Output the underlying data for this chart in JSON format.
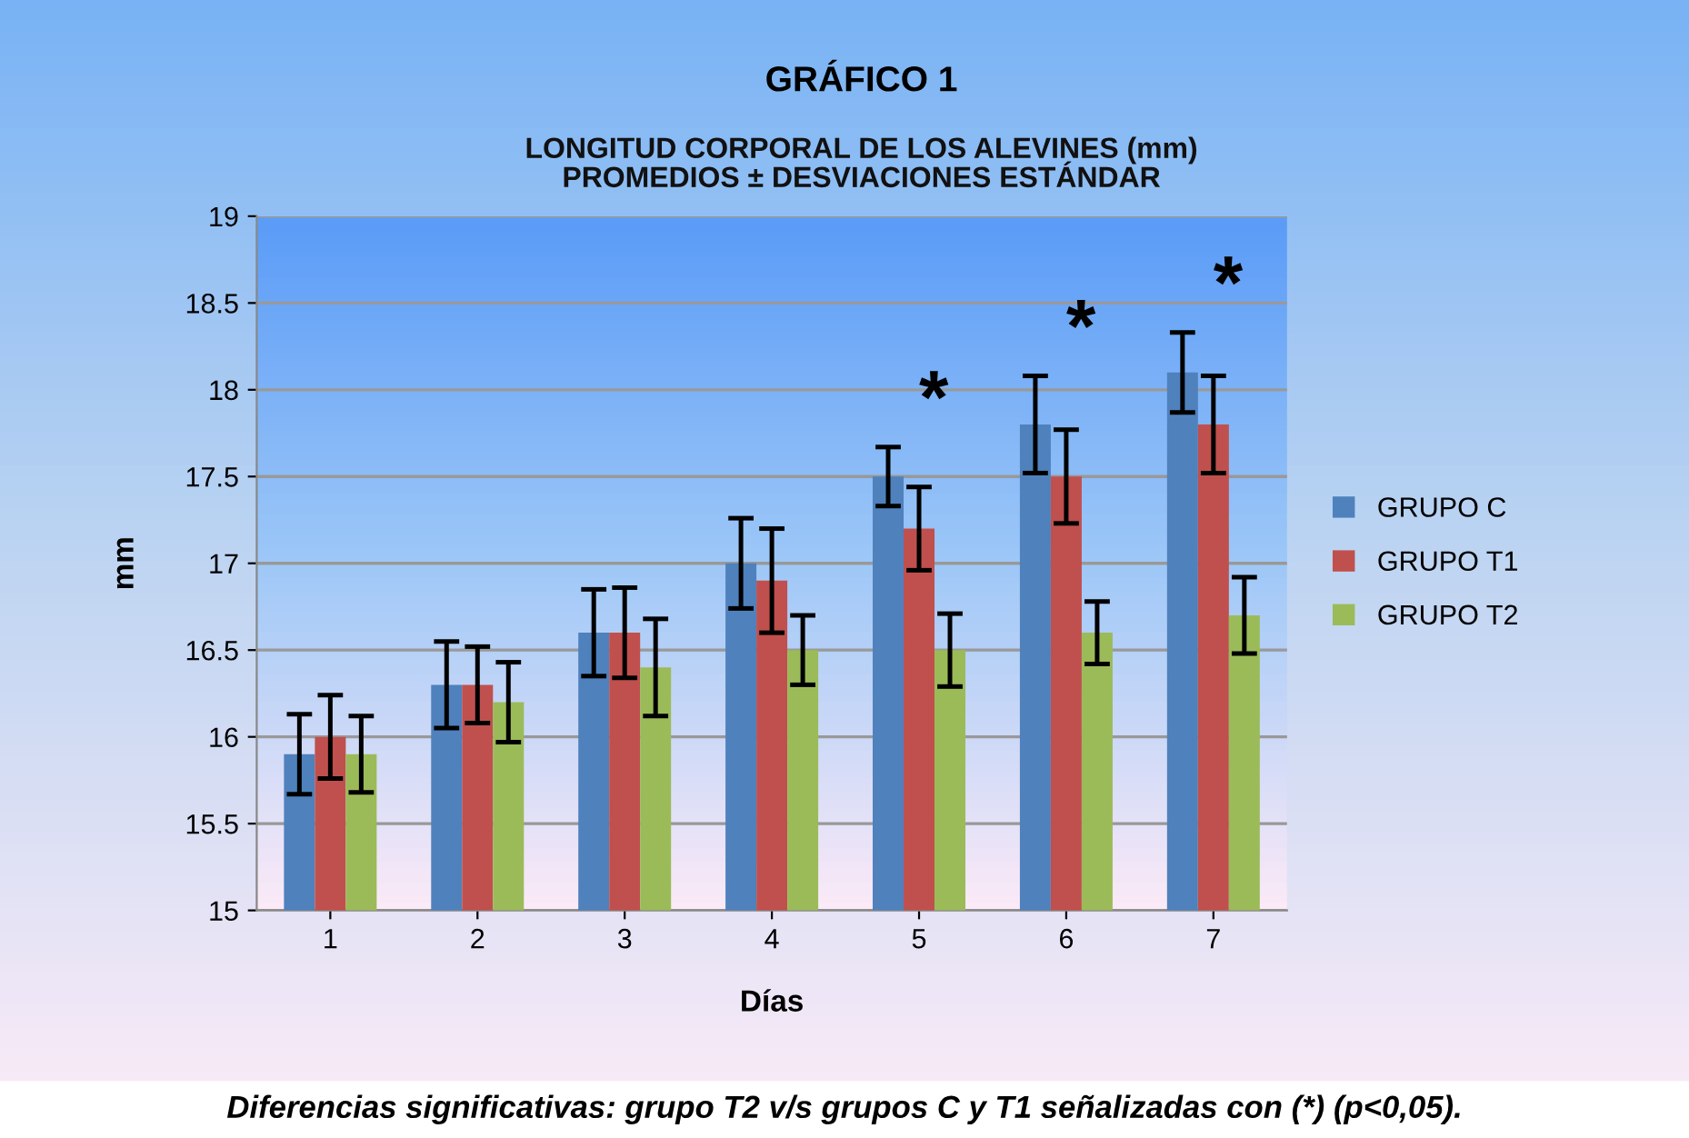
{
  "chart_data": {
    "type": "bar",
    "title": "GRÁFICO 1",
    "subtitle": "LONGITUD CORPORAL DE LOS ALEVINES (mm)\nPROMEDIOS ± DESVIACIONES ESTÁNDAR",
    "xlabel": "Días",
    "ylabel": "mm",
    "categories": [
      "1",
      "2",
      "3",
      "4",
      "5",
      "6",
      "7"
    ],
    "series": [
      {
        "name": "GRUPO C",
        "color": "#4f81bd",
        "values": [
          15.9,
          16.3,
          16.6,
          17.0,
          17.5,
          17.8,
          18.1
        ],
        "errors": [
          0.23,
          0.25,
          0.25,
          0.26,
          0.17,
          0.28,
          0.23
        ]
      },
      {
        "name": "GRUPO T1",
        "color": "#c0504d",
        "values": [
          16.0,
          16.3,
          16.6,
          16.9,
          17.2,
          17.5,
          17.8
        ],
        "errors": [
          0.24,
          0.22,
          0.26,
          0.3,
          0.24,
          0.27,
          0.28
        ]
      },
      {
        "name": "GRUPO T2",
        "color": "#9bbb59",
        "values": [
          15.9,
          16.2,
          16.4,
          16.5,
          16.5,
          16.6,
          16.7
        ],
        "errors": [
          0.22,
          0.23,
          0.28,
          0.2,
          0.21,
          0.18,
          0.22
        ]
      }
    ],
    "ylim": [
      15,
      19
    ],
    "yticks": [
      15,
      15.5,
      16,
      16.5,
      17,
      17.5,
      18,
      18.5,
      19
    ],
    "grid": "y",
    "legend": "right",
    "annotations": [
      "*",
      "*",
      "*",
      "Diferencias significativas: grupo T2 v/s grupos C y T1 señalizadas con (*) (p<0,05)."
    ]
  }
}
